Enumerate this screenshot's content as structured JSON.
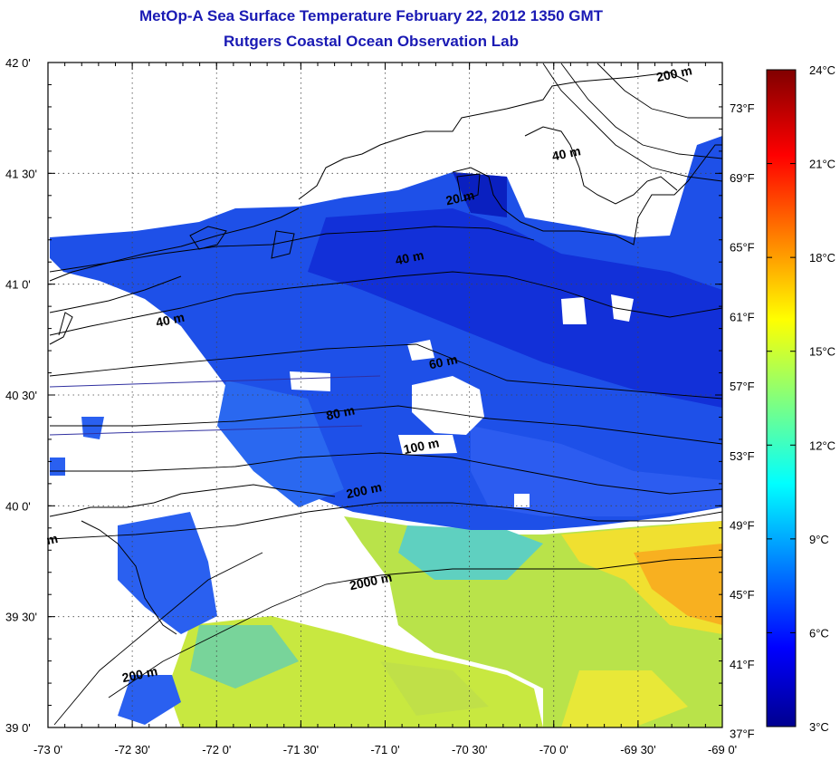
{
  "title": {
    "line1": "MetOp-A Sea Surface Temperature February 22, 2012 1350 GMT",
    "line2": "Rutgers Coastal Ocean Observation Lab"
  },
  "map": {
    "lon_range": [
      -73,
      -69
    ],
    "lat_range": [
      39,
      42
    ],
    "lon_ticks": [
      {
        "value": -73,
        "label": "-73 0'"
      },
      {
        "value": -72.5,
        "label": "-72 30'"
      },
      {
        "value": -72,
        "label": "-72 0'"
      },
      {
        "value": -71.5,
        "label": "-71 30'"
      },
      {
        "value": -71,
        "label": "-71 0'"
      },
      {
        "value": -70.5,
        "label": "-70 30'"
      },
      {
        "value": -70,
        "label": "-70 0'"
      },
      {
        "value": -69.5,
        "label": "-69 30'"
      },
      {
        "value": -69,
        "label": "-69 0'"
      }
    ],
    "lat_ticks": [
      {
        "value": 39,
        "label": "39 0'"
      },
      {
        "value": 39.5,
        "label": "39 30'"
      },
      {
        "value": 40,
        "label": "40 0'"
      },
      {
        "value": 40.5,
        "label": "40 30'"
      },
      {
        "value": 41,
        "label": "41 0'"
      },
      {
        "value": 41.5,
        "label": "41 30'"
      },
      {
        "value": 42,
        "label": "42 0'"
      }
    ],
    "grid": "dotted",
    "fahrenheit_axis": [
      {
        "value": 37,
        "label": "37°F"
      },
      {
        "value": 41,
        "label": "41°F"
      },
      {
        "value": 45,
        "label": "45°F"
      },
      {
        "value": 49,
        "label": "49°F"
      },
      {
        "value": 53,
        "label": "53°F"
      },
      {
        "value": 57,
        "label": "57°F"
      },
      {
        "value": 61,
        "label": "61°F"
      },
      {
        "value": 65,
        "label": "65°F"
      },
      {
        "value": 69,
        "label": "69°F"
      },
      {
        "value": 73,
        "label": "73°F"
      }
    ],
    "depth_contour_labels": [
      {
        "label": "20 m",
        "lon": -70.55,
        "lat": 41.37
      },
      {
        "label": "40 m",
        "lon": -70.85,
        "lat": 41.1
      },
      {
        "label": "40 m",
        "lon": -72.27,
        "lat": 40.82
      },
      {
        "label": "40 m",
        "lon": -69.92,
        "lat": 41.57
      },
      {
        "label": "200 m",
        "lon": -69.28,
        "lat": 41.93
      },
      {
        "label": "60 m",
        "lon": -70.65,
        "lat": 40.63
      },
      {
        "label": "80 m",
        "lon": -71.26,
        "lat": 40.4
      },
      {
        "label": "100 m",
        "lon": -70.78,
        "lat": 40.25
      },
      {
        "label": "200 m",
        "lon": -71.12,
        "lat": 40.05
      },
      {
        "label": "2000 m",
        "lon": -71.08,
        "lat": 39.64
      },
      {
        "label": "200 m",
        "lon": -72.45,
        "lat": 39.22
      },
      {
        "label": "m",
        "lon": -72.97,
        "lat": 39.83
      }
    ]
  },
  "colorbar": {
    "range_c": [
      3,
      24
    ],
    "ticks": [
      {
        "value": 3,
        "label": "3°C"
      },
      {
        "value": 6,
        "label": "6°C"
      },
      {
        "value": 9,
        "label": "9°C"
      },
      {
        "value": 12,
        "label": "12°C"
      },
      {
        "value": 15,
        "label": "15°C"
      },
      {
        "value": 18,
        "label": "18°C"
      },
      {
        "value": 21,
        "label": "21°C"
      },
      {
        "value": 24,
        "label": "24°C"
      }
    ],
    "colormap": "jet",
    "colors": [
      "#00008f",
      "#0000ff",
      "#00ffff",
      "#ffff00",
      "#ff0000",
      "#800000"
    ]
  }
}
